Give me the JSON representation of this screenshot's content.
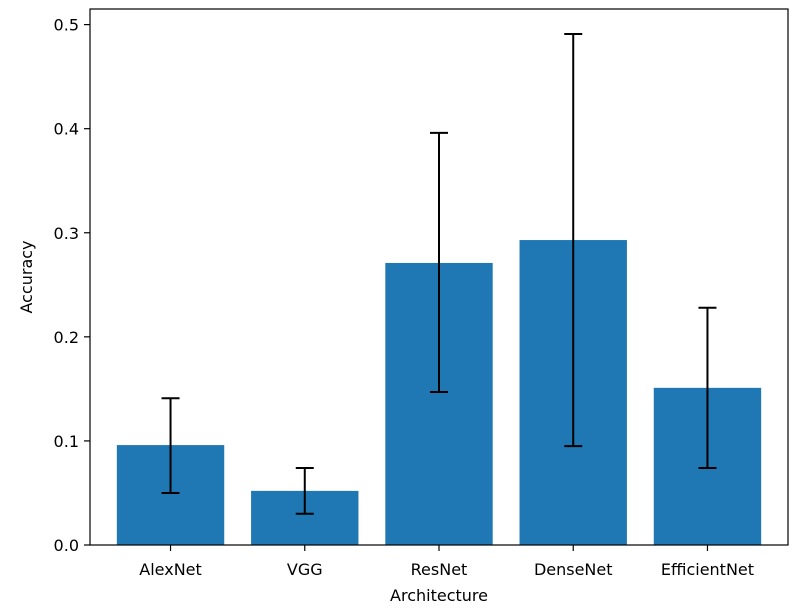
{
  "chart_data": {
    "type": "bar",
    "title": "",
    "xlabel": "Architecture",
    "ylabel": "Accuracy",
    "categories": [
      "AlexNet",
      "VGG",
      "ResNet",
      "DenseNet",
      "EfficientNet"
    ],
    "values": [
      0.096,
      0.052,
      0.271,
      0.293,
      0.151
    ],
    "error_low": [
      0.05,
      0.03,
      0.147,
      0.095,
      0.074
    ],
    "error_high": [
      0.141,
      0.074,
      0.396,
      0.491,
      0.228
    ],
    "ylim": [
      0,
      0.515
    ],
    "yticks": [
      0.0,
      0.1,
      0.2,
      0.3,
      0.4,
      0.5
    ],
    "ytick_labels": [
      "0.0",
      "0.1",
      "0.2",
      "0.3",
      "0.4",
      "0.5"
    ],
    "grid": false,
    "legend": "none",
    "bar_color": "#1f77b4",
    "error_color": "#000000"
  }
}
